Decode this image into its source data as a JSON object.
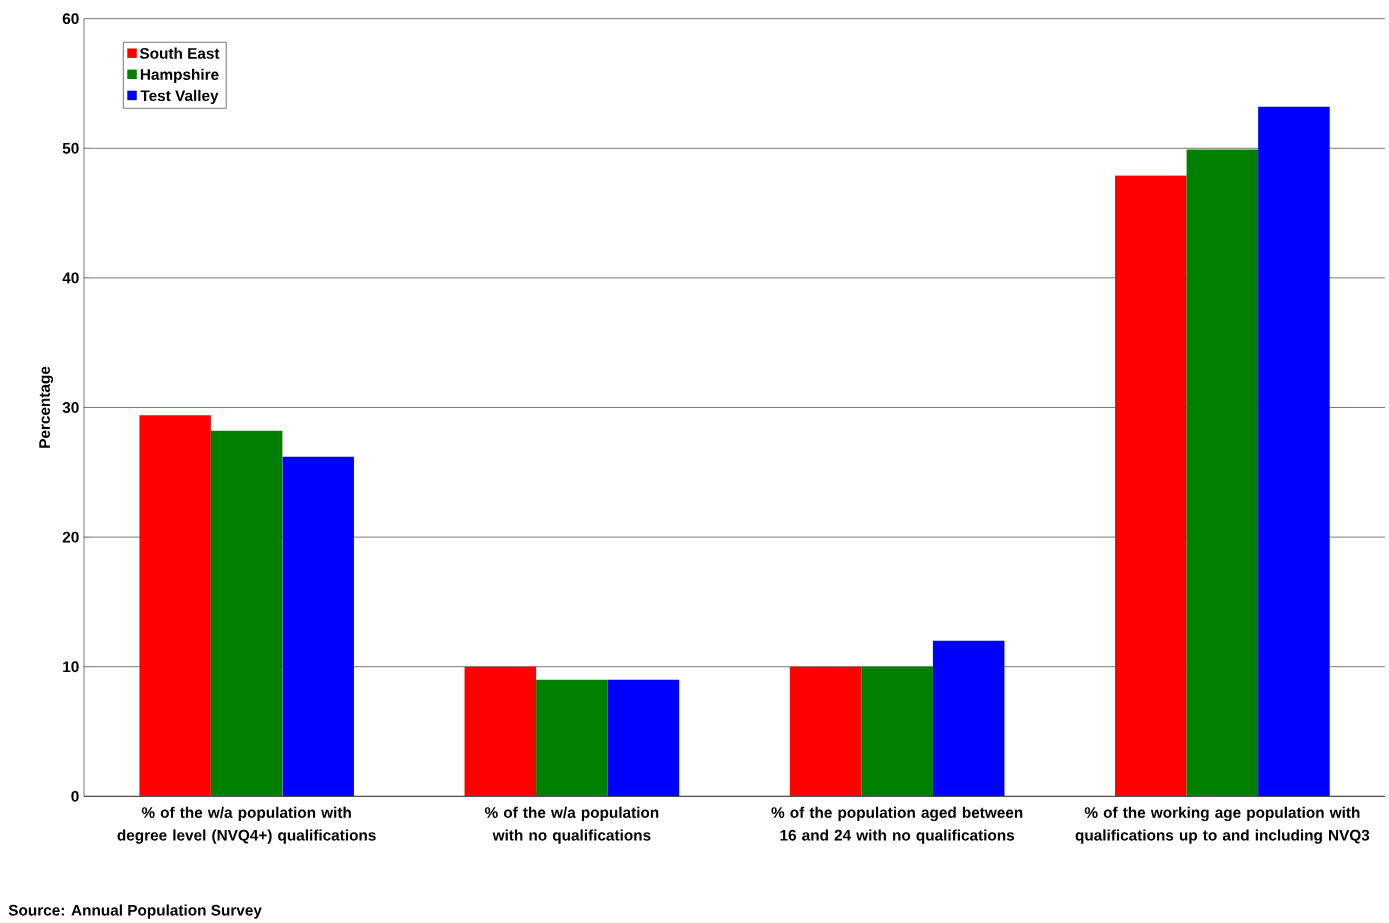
{
  "chart_data": {
    "type": "bar",
    "ylabel": "Percentage",
    "categories": [
      "% of the w/a population with degree level (NVQ4+) qualifications",
      "% of the w/a population with no qualifications",
      "% of the population aged between 16 and 24 with no qualifications",
      "% of the working age population with qualifications up to and including NVQ3"
    ],
    "series": [
      {
        "name": "South East",
        "color": "#ff0000",
        "values": [
          29.4,
          10.0,
          10.0,
          47.9
        ]
      },
      {
        "name": "Hampshire",
        "color": "#008000",
        "values": [
          28.2,
          9.0,
          10.0,
          49.9
        ]
      },
      {
        "name": "Test Valley",
        "color": "#0000ff",
        "values": [
          26.2,
          9.0,
          12.0,
          53.2
        ]
      }
    ],
    "ylim": [
      0,
      60
    ],
    "yticks": [
      0,
      10,
      20,
      30,
      40,
      50,
      60
    ],
    "grid": "y",
    "legend": "top left",
    "annotations": [
      "Source: Annual Population Survey"
    ]
  }
}
